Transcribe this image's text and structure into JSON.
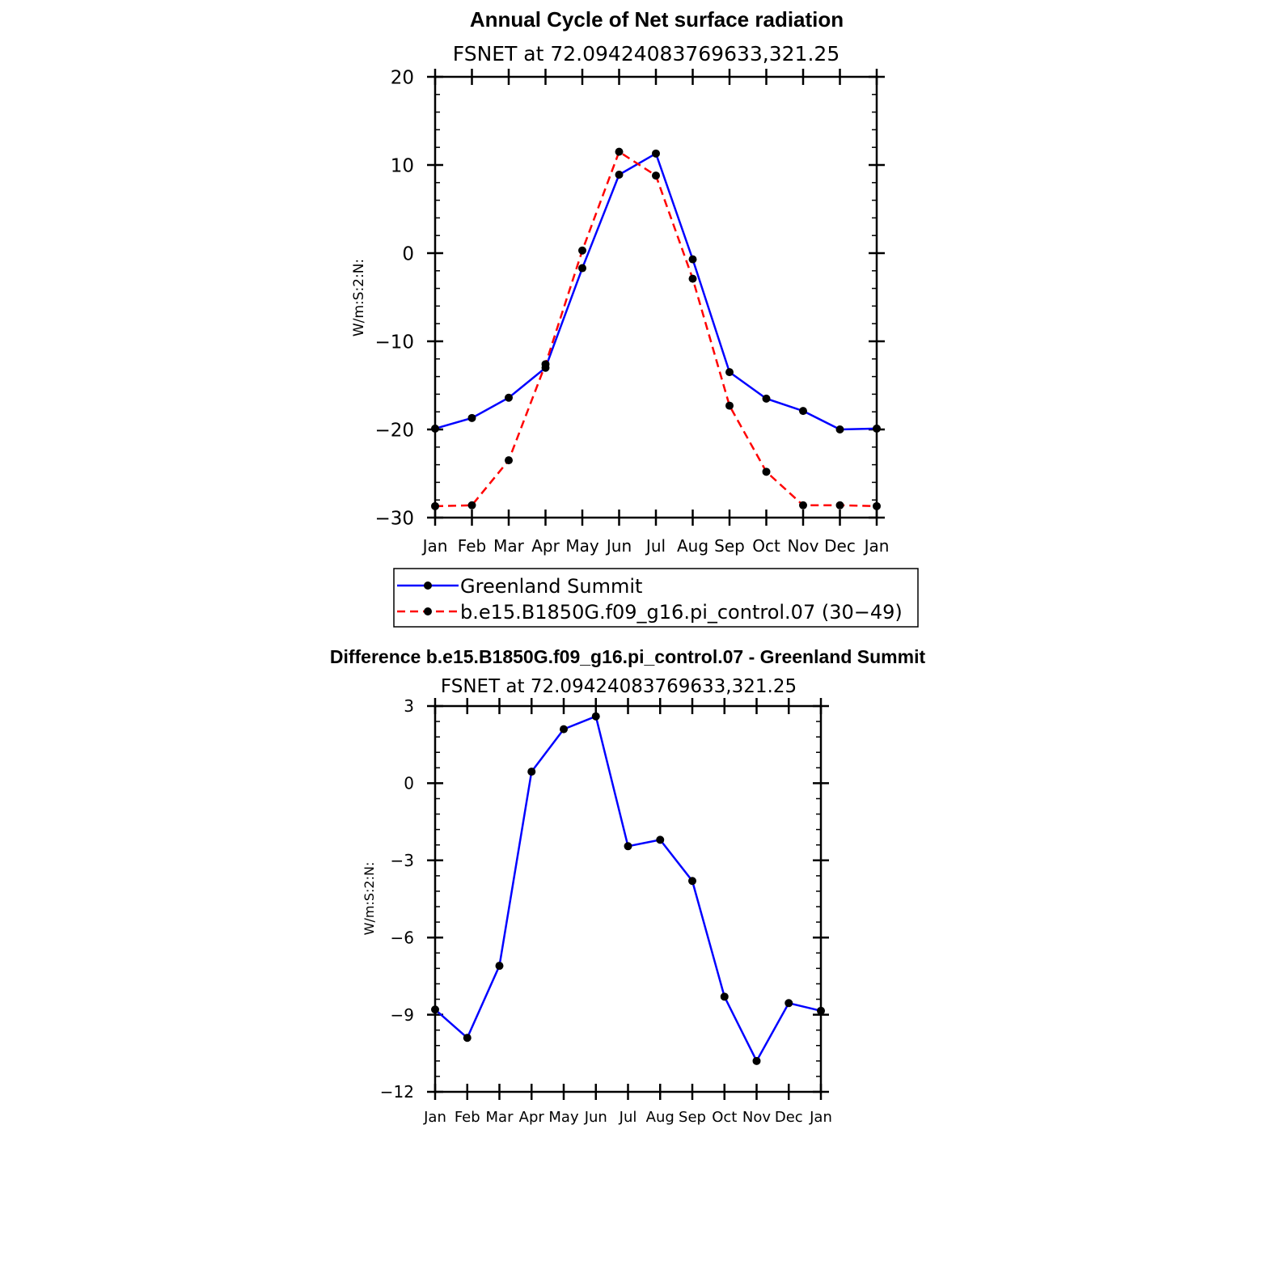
{
  "chart_data": [
    {
      "type": "line",
      "title": "Annual Cycle of Net surface radiation",
      "subtitle": "FSNET at 72.09424083769633,321.25",
      "ylabel": "W/m:S:2:N:",
      "ylim": [
        -30,
        20
      ],
      "yticks": [
        "20",
        "10",
        "0",
        "−10",
        "−20",
        "−30"
      ],
      "ytick_values": [
        20,
        10,
        0,
        -10,
        -20,
        -30
      ],
      "categories": [
        "Jan",
        "Feb",
        "Mar",
        "Apr",
        "May",
        "Jun",
        "Jul",
        "Aug",
        "Sep",
        "Oct",
        "Nov",
        "Dec",
        "Jan"
      ],
      "series": [
        {
          "name": "Greenland Summit",
          "color": "#0000ff",
          "dash": "solid",
          "values": [
            -19.9,
            -18.7,
            -16.4,
            -13.0,
            -1.7,
            8.9,
            11.3,
            -0.7,
            -13.5,
            -16.5,
            -17.9,
            -20.0,
            -19.9
          ]
        },
        {
          "name": "b.e15.B1850G.f09_g16.pi_control.07 (30−49)",
          "color": "#ff0000",
          "dash": "dashed",
          "values": [
            -28.7,
            -28.6,
            -23.5,
            -12.6,
            0.3,
            11.5,
            8.8,
            -2.9,
            -17.3,
            -24.8,
            -28.6,
            -28.6,
            -28.7
          ]
        }
      ],
      "legend": "below"
    },
    {
      "type": "line",
      "title": "Difference b.e15.B1850G.f09_g16.pi_control.07 - Greenland Summit",
      "subtitle": "FSNET at 72.09424083769633,321.25",
      "ylabel": "W/m:S:2:N:",
      "ylim": [
        -12,
        3
      ],
      "yticks": [
        "3",
        "0",
        "−3",
        "−6",
        "−9",
        "−12"
      ],
      "ytick_values": [
        3,
        0,
        -3,
        -6,
        -9,
        -12
      ],
      "categories": [
        "Jan",
        "Feb",
        "Mar",
        "Apr",
        "May",
        "Jun",
        "Jul",
        "Aug",
        "Sep",
        "Oct",
        "Nov",
        "Dec",
        "Jan"
      ],
      "series": [
        {
          "color": "#0000ff",
          "dash": "solid",
          "values": [
            -8.8,
            -9.9,
            -7.1,
            0.45,
            2.1,
            2.6,
            -2.45,
            -2.2,
            -3.8,
            -8.3,
            -10.8,
            -8.55,
            -8.85
          ]
        }
      ]
    }
  ]
}
